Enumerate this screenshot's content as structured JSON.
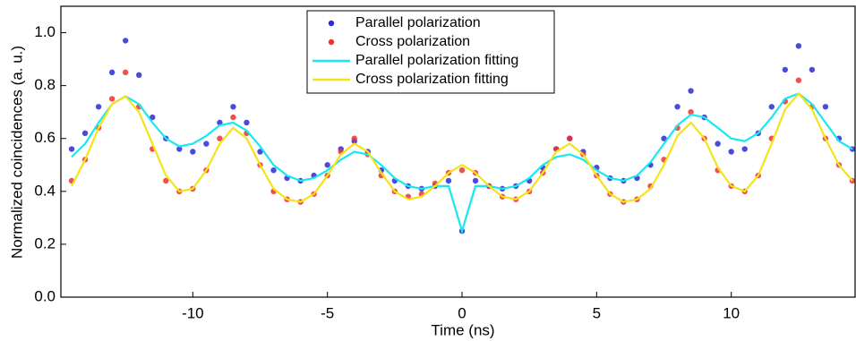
{
  "chart_data": {
    "type": "scatter",
    "x_label": "Time (ns)",
    "y_label": "Normalized coincidences (a. u.)",
    "xlim": [
      -14.9,
      14.6
    ],
    "ylim": [
      0,
      1.1
    ],
    "xticks": [
      -10,
      -5,
      0,
      5,
      10
    ],
    "yticks": [
      {
        "value": 0,
        "label": "0.0"
      },
      {
        "value": 0.2,
        "label": "0.2"
      },
      {
        "value": 0.4,
        "label": "0.4"
      },
      {
        "value": 0.6,
        "label": "0.6"
      },
      {
        "value": 0.8,
        "label": "0.8"
      },
      {
        "value": 1.0,
        "label": "1.0"
      }
    ],
    "legend": "top",
    "x": [
      -14.5,
      -14,
      -13.5,
      -13,
      -12.5,
      -12,
      -11.5,
      -11,
      -10.5,
      -10,
      -9.5,
      -9,
      -8.5,
      -8,
      -7.5,
      -7,
      -6.5,
      -6,
      -5.5,
      -5,
      -4.5,
      -4,
      -3.5,
      -3,
      -2.5,
      -2,
      -1.5,
      -1,
      -0.5,
      0,
      0.5,
      1,
      1.5,
      2,
      2.5,
      3,
      3.5,
      4,
      4.5,
      5,
      5.5,
      6,
      6.5,
      7,
      7.5,
      8,
      8.5,
      9,
      9.5,
      10,
      10.5,
      11,
      11.5,
      12,
      12.5,
      13,
      13.5,
      14,
      14.5
    ],
    "series": [
      {
        "name": "Parallel polarization",
        "style": "markers",
        "color": "#2a2ad8",
        "values": [
          0.56,
          0.62,
          0.72,
          0.85,
          0.97,
          0.84,
          0.68,
          0.6,
          0.56,
          0.55,
          0.58,
          0.66,
          0.72,
          0.66,
          0.55,
          0.48,
          0.45,
          0.44,
          0.46,
          0.5,
          0.56,
          0.59,
          0.55,
          0.48,
          0.44,
          0.42,
          0.41,
          0.42,
          0.44,
          0.25,
          0.44,
          0.42,
          0.41,
          0.42,
          0.44,
          0.49,
          0.56,
          0.6,
          0.55,
          0.49,
          0.45,
          0.44,
          0.45,
          0.5,
          0.6,
          0.72,
          0.78,
          0.68,
          0.58,
          0.55,
          0.56,
          0.62,
          0.72,
          0.86,
          0.95,
          0.86,
          0.72,
          0.6,
          0.56
        ]
      },
      {
        "name": "Cross polarization",
        "style": "markers",
        "color": "#f03030",
        "values": [
          0.44,
          0.52,
          0.64,
          0.75,
          0.85,
          0.72,
          0.56,
          0.44,
          0.4,
          0.41,
          0.48,
          0.6,
          0.68,
          0.62,
          0.5,
          0.4,
          0.37,
          0.36,
          0.39,
          0.46,
          0.55,
          0.6,
          0.54,
          0.46,
          0.4,
          0.38,
          0.39,
          0.43,
          0.47,
          0.48,
          0.47,
          0.42,
          0.38,
          0.37,
          0.4,
          0.47,
          0.56,
          0.6,
          0.54,
          0.46,
          0.39,
          0.36,
          0.37,
          0.42,
          0.52,
          0.64,
          0.7,
          0.6,
          0.48,
          0.42,
          0.4,
          0.46,
          0.6,
          0.74,
          0.82,
          0.72,
          0.6,
          0.5,
          0.44
        ]
      },
      {
        "name": "Parallel polarization fitting",
        "style": "line",
        "color": "#18e8f0",
        "values": [
          0.53,
          0.58,
          0.66,
          0.73,
          0.76,
          0.73,
          0.66,
          0.6,
          0.57,
          0.58,
          0.61,
          0.65,
          0.66,
          0.63,
          0.57,
          0.5,
          0.46,
          0.44,
          0.45,
          0.48,
          0.52,
          0.55,
          0.54,
          0.5,
          0.45,
          0.42,
          0.41,
          0.42,
          0.42,
          0.25,
          0.42,
          0.42,
          0.41,
          0.42,
          0.45,
          0.5,
          0.53,
          0.54,
          0.52,
          0.48,
          0.45,
          0.44,
          0.46,
          0.51,
          0.58,
          0.65,
          0.69,
          0.68,
          0.64,
          0.6,
          0.59,
          0.62,
          0.68,
          0.75,
          0.77,
          0.73,
          0.66,
          0.59,
          0.56
        ]
      },
      {
        "name": "Cross polarization fitting",
        "style": "line",
        "color": "#f5e31a",
        "values": [
          0.42,
          0.52,
          0.64,
          0.73,
          0.76,
          0.7,
          0.58,
          0.46,
          0.4,
          0.41,
          0.48,
          0.58,
          0.64,
          0.6,
          0.5,
          0.41,
          0.37,
          0.36,
          0.39,
          0.46,
          0.54,
          0.58,
          0.55,
          0.47,
          0.4,
          0.37,
          0.38,
          0.42,
          0.47,
          0.5,
          0.47,
          0.42,
          0.38,
          0.37,
          0.4,
          0.47,
          0.55,
          0.58,
          0.54,
          0.46,
          0.39,
          0.36,
          0.37,
          0.41,
          0.5,
          0.61,
          0.66,
          0.6,
          0.49,
          0.42,
          0.4,
          0.46,
          0.58,
          0.71,
          0.77,
          0.71,
          0.6,
          0.5,
          0.44
        ]
      }
    ]
  }
}
